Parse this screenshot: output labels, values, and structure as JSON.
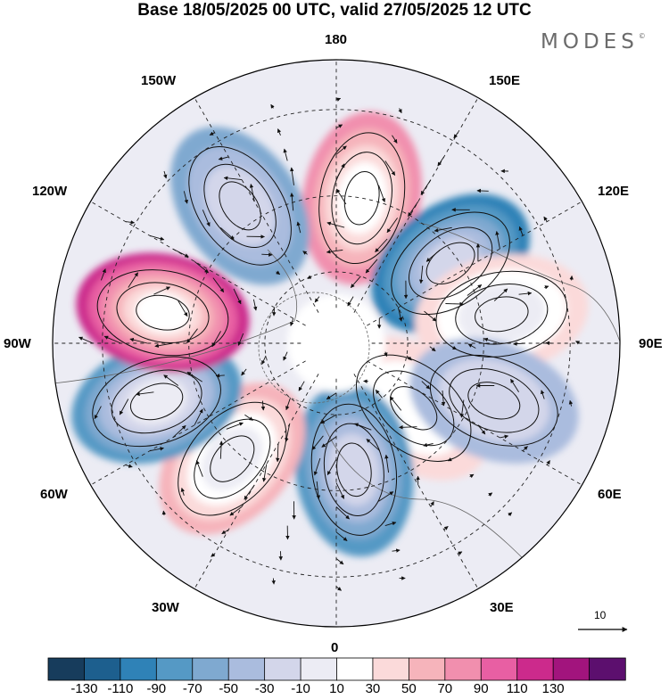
{
  "title": "Base 18/05/2025 00 UTC, valid 27/05/2025 12 UTC",
  "brand": "MODES",
  "brand_mark": "©",
  "longitude_labels": {
    "lon_180": "180",
    "lon_150e": "150E",
    "lon_120e": "120E",
    "lon_90e": "90E",
    "lon_60e": "60E",
    "lon_30e": "30E",
    "lon_0": "0",
    "lon_30w": "30W",
    "lon_60w": "60W",
    "lon_90w": "90W",
    "lon_120w": "120W",
    "lon_150w": "150W"
  },
  "reference_vector": {
    "value": "10"
  },
  "colorbar": {
    "colors": [
      "#173c5c",
      "#1d5f8e",
      "#2f82b7",
      "#5599c5",
      "#7fa9d0",
      "#aabcde",
      "#d3d6ea",
      "#ececf4",
      "#ffffff",
      "#fbdada",
      "#f6b4bb",
      "#f18fae",
      "#e85fa3",
      "#cc2a8c",
      "#a2147d",
      "#5c0f6e"
    ],
    "tick_labels": [
      "-130",
      "-110",
      "-90",
      "-70",
      "-50",
      "-30",
      "-10",
      "10",
      "30",
      "50",
      "70",
      "90",
      "110",
      "130"
    ]
  },
  "anomaly_centers": [
    {
      "name": "pos-150e",
      "lon": 170,
      "lat": 50,
      "value": 80
    },
    {
      "name": "neg-120e",
      "lon": 125,
      "lat": 52,
      "value": -100
    },
    {
      "name": "pos-100e",
      "lon": 100,
      "lat": 45,
      "value": 45
    },
    {
      "name": "pos-40e",
      "lon": 50,
      "lat": 62,
      "value": 40
    },
    {
      "name": "neg-70e",
      "lon": 70,
      "lat": 45,
      "value": -40
    },
    {
      "name": "neg-10e",
      "lon": 8,
      "lat": 55,
      "value": -80
    },
    {
      "name": "pos-40w",
      "lon": -42,
      "lat": 48,
      "value": 65
    },
    {
      "name": "neg-70w",
      "lon": -72,
      "lat": 40,
      "value": -90
    },
    {
      "name": "pos-100w",
      "lon": -100,
      "lat": 43,
      "value": 110
    },
    {
      "name": "neg-145w",
      "lon": -145,
      "lat": 45,
      "value": -60
    }
  ]
}
